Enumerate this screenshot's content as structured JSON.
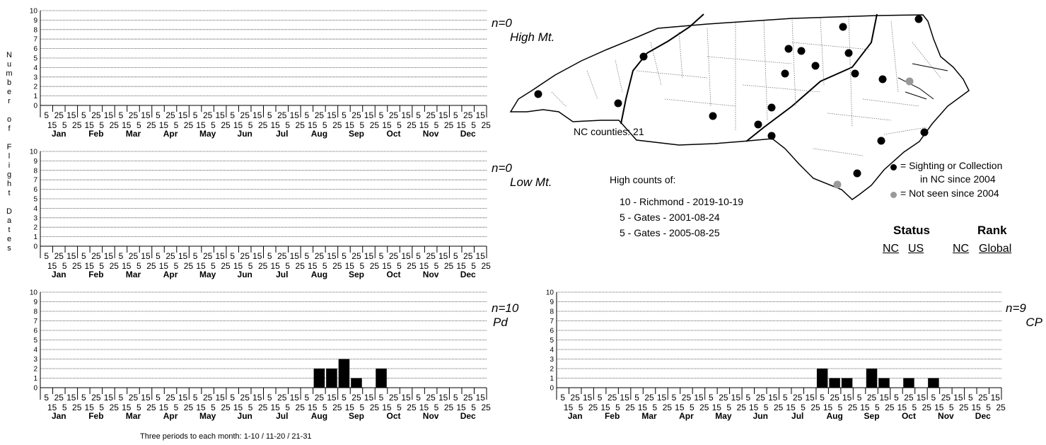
{
  "y_axis_label": "Number of Flight Dates",
  "footer_note": "Three periods to each month: 1-10 / 11-20 / 21-31",
  "month_labels": [
    "Jan",
    "Feb",
    "Mar",
    "Apr",
    "May",
    "Jun",
    "Jul",
    "Aug",
    "Sep",
    "Oct",
    "Nov",
    "Dec"
  ],
  "period_labels_top": [
    "5",
    "25",
    "15",
    "5",
    "25",
    "15",
    "5",
    "25",
    "15",
    "5",
    "25",
    "15",
    "5",
    "25",
    "15",
    "5",
    "25",
    "15",
    "5",
    "25",
    "15",
    "5",
    "25",
    "15",
    "5",
    "25",
    "15",
    "5",
    "25",
    "15",
    "5",
    "25",
    "15",
    "5",
    "25",
    "15"
  ],
  "period_labels_bottom": [
    "15",
    "5",
    "25",
    "15",
    "5",
    "25",
    "15",
    "5",
    "25",
    "15",
    "5",
    "25",
    "15",
    "5",
    "25",
    "15",
    "5",
    "25",
    "15",
    "5",
    "25",
    "15",
    "5",
    "25",
    "15",
    "5",
    "25",
    "15",
    "5",
    "25",
    "15",
    "5",
    "25",
    "15",
    "5",
    "25"
  ],
  "map": {
    "counties_label": "NC counties: 21",
    "high_counts_title": "High counts of:",
    "high_counts": [
      "10 - Richmond - 2019-10-19",
      "5 - Gates - 2001-08-24",
      "5 - Gates - 2005-08-25"
    ],
    "legend": {
      "recent_line1": "= Sighting or Collection",
      "recent_line2": "in NC since 2004",
      "old": "= Not seen since 2004",
      "recent_color": "#000000",
      "old_color": "#999999"
    },
    "status_header": "Status",
    "rank_header": "Rank",
    "status_cols": [
      "NC",
      "US"
    ],
    "rank_cols": [
      "NC",
      "Global"
    ]
  },
  "chart_data": [
    {
      "type": "bar",
      "region": "High Mt.",
      "n_label": "n=0",
      "ylim": [
        0,
        10
      ],
      "y_ticks": [
        "0",
        "1",
        "2",
        "3",
        "4",
        "5",
        "6",
        "7",
        "8",
        "9",
        "10"
      ],
      "values": [
        0,
        0,
        0,
        0,
        0,
        0,
        0,
        0,
        0,
        0,
        0,
        0,
        0,
        0,
        0,
        0,
        0,
        0,
        0,
        0,
        0,
        0,
        0,
        0,
        0,
        0,
        0,
        0,
        0,
        0,
        0,
        0,
        0,
        0,
        0,
        0
      ]
    },
    {
      "type": "bar",
      "region": "Low Mt.",
      "n_label": "n=0",
      "ylim": [
        0,
        10
      ],
      "y_ticks": [
        "0",
        "1",
        "2",
        "3",
        "4",
        "5",
        "6",
        "7",
        "8",
        "9",
        "10"
      ],
      "values": [
        0,
        0,
        0,
        0,
        0,
        0,
        0,
        0,
        0,
        0,
        0,
        0,
        0,
        0,
        0,
        0,
        0,
        0,
        0,
        0,
        0,
        0,
        0,
        0,
        0,
        0,
        0,
        0,
        0,
        0,
        0,
        0,
        0,
        0,
        0,
        0
      ]
    },
    {
      "type": "bar",
      "region": "Pd",
      "n_label": "n=10",
      "ylim": [
        0,
        10
      ],
      "y_ticks": [
        "0",
        "1",
        "2",
        "3",
        "4",
        "5",
        "6",
        "7",
        "8",
        "9",
        "10"
      ],
      "values": [
        0,
        0,
        0,
        0,
        0,
        0,
        0,
        0,
        0,
        0,
        0,
        0,
        0,
        0,
        0,
        0,
        0,
        0,
        0,
        0,
        0,
        0,
        2,
        2,
        3,
        1,
        0,
        2,
        0,
        0,
        0,
        0,
        0,
        0,
        0,
        0
      ]
    },
    {
      "type": "bar",
      "region": "CP",
      "n_label": "n=9",
      "ylim": [
        0,
        10
      ],
      "y_ticks": [
        "0",
        "1",
        "2",
        "3",
        "4",
        "5",
        "6",
        "7",
        "8",
        "9",
        "10"
      ],
      "values": [
        0,
        0,
        0,
        0,
        0,
        0,
        0,
        0,
        0,
        0,
        0,
        0,
        0,
        0,
        0,
        0,
        0,
        0,
        0,
        0,
        0,
        2,
        1,
        1,
        0,
        2,
        1,
        0,
        1,
        0,
        1,
        0,
        0,
        0,
        0,
        0
      ]
    }
  ]
}
